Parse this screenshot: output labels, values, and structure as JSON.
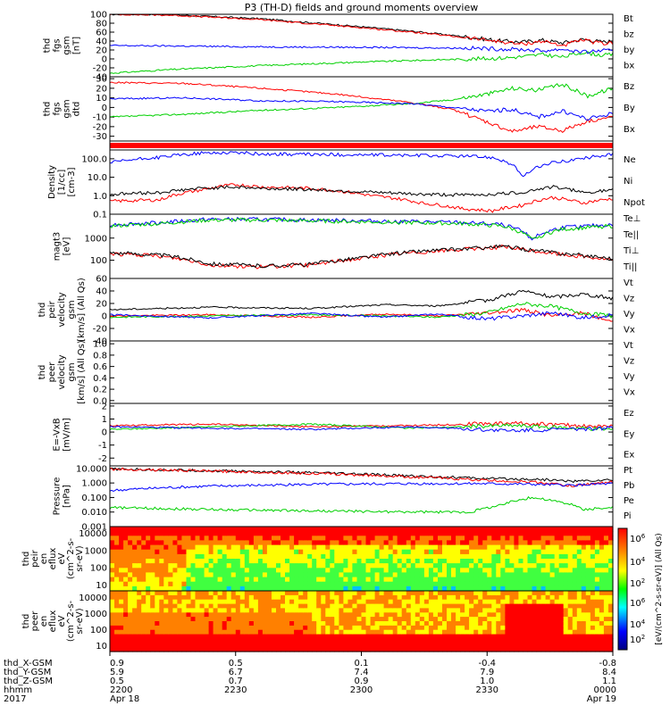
{
  "title": "P3 (TH-D) fields and ground moments overview",
  "colors": {
    "black": "#000000",
    "red": "#ff0000",
    "green": "#00d000",
    "blue": "#0000ff"
  },
  "chart_data": [
    {
      "type": "line",
      "panel": "fgs_gsm",
      "ylabel": [
        "thd",
        "fgs",
        "gsm",
        "[nT]"
      ],
      "ylim": [
        -40,
        100
      ],
      "yticks": [
        100,
        80,
        60,
        40,
        20,
        0,
        -20,
        -40
      ],
      "series": [
        {
          "name": "Bt",
          "color": "black",
          "x": [
            0,
            0.12,
            0.3,
            0.5,
            0.62,
            0.72,
            0.78,
            0.82,
            0.86,
            0.9,
            0.94,
            0.98,
            1
          ],
          "values": [
            100,
            99,
            90,
            72,
            60,
            48,
            40,
            38,
            42,
            36,
            44,
            38,
            40
          ]
        },
        {
          "name": "bz",
          "color": "red",
          "x": [
            0,
            0.12,
            0.3,
            0.5,
            0.62,
            0.72,
            0.78,
            0.82,
            0.86,
            0.9,
            0.94,
            0.98,
            1
          ],
          "values": [
            100,
            98,
            88,
            70,
            58,
            46,
            38,
            33,
            40,
            30,
            42,
            34,
            36
          ]
        },
        {
          "name": "by",
          "color": "green",
          "x": [
            0,
            0.12,
            0.3,
            0.5,
            0.62,
            0.72,
            0.78,
            0.82,
            0.86,
            0.9,
            0.94,
            0.98,
            1
          ],
          "values": [
            -32,
            -24,
            -15,
            -7,
            -3,
            0,
            2,
            5,
            10,
            4,
            15,
            8,
            10
          ]
        },
        {
          "name": "bx",
          "color": "blue",
          "x": [
            0,
            0.12,
            0.3,
            0.5,
            0.62,
            0.72,
            0.78,
            0.82,
            0.86,
            0.9,
            0.94,
            0.98,
            1
          ],
          "values": [
            30,
            29,
            27,
            26,
            25,
            24,
            22,
            21,
            18,
            22,
            15,
            19,
            17
          ]
        }
      ]
    },
    {
      "type": "line",
      "panel": "fgs_gsm_detrend",
      "ylabel": [
        "thd",
        "fgs",
        "gsm",
        "dtd"
      ],
      "ylim": [
        -35,
        32
      ],
      "yticks": [
        30,
        20,
        10,
        0,
        -10,
        -20,
        -30
      ],
      "series": [
        {
          "name": "Bz",
          "color": "red",
          "x": [
            0,
            0.15,
            0.3,
            0.45,
            0.6,
            0.68,
            0.75,
            0.8,
            0.85,
            0.9,
            0.95,
            1
          ],
          "values": [
            26,
            25,
            20,
            14,
            5,
            -2,
            -15,
            -25,
            -20,
            -24,
            -14,
            -10
          ]
        },
        {
          "name": "By",
          "color": "green",
          "x": [
            0,
            0.15,
            0.3,
            0.45,
            0.6,
            0.68,
            0.75,
            0.8,
            0.85,
            0.9,
            0.95,
            1
          ],
          "values": [
            -10,
            -7,
            -3,
            0,
            4,
            8,
            14,
            20,
            18,
            24,
            12,
            20
          ]
        },
        {
          "name": "Bx",
          "color": "blue",
          "x": [
            0,
            0.15,
            0.3,
            0.45,
            0.6,
            0.68,
            0.75,
            0.8,
            0.85,
            0.9,
            0.95,
            1
          ],
          "values": [
            9,
            10,
            7,
            6,
            4,
            0,
            -4,
            -2,
            -10,
            -4,
            -12,
            -6
          ]
        }
      ]
    },
    {
      "type": "line",
      "panel": "density",
      "log": true,
      "ylabel": [
        "Density",
        "[1/cc]",
        "[cm-3]"
      ],
      "ylim": [
        0.1,
        300
      ],
      "yticks": [
        "100.0",
        "10.0",
        "1.0",
        "0.1"
      ],
      "series": [
        {
          "name": "Ne",
          "color": "red",
          "x": [
            0,
            0.1,
            0.18,
            0.25,
            0.3,
            0.4,
            0.52,
            0.62,
            0.7,
            0.76,
            0.82,
            0.88,
            0.94,
            1
          ],
          "values": [
            0.5,
            0.6,
            2,
            4,
            3,
            2.5,
            1,
            0.4,
            0.2,
            0.15,
            0.3,
            0.8,
            0.4,
            0.7
          ]
        },
        {
          "name": "Ni",
          "color": "black",
          "x": [
            0,
            0.1,
            0.18,
            0.25,
            0.3,
            0.4,
            0.52,
            0.62,
            0.7,
            0.76,
            0.82,
            0.88,
            0.94,
            1
          ],
          "values": [
            1.2,
            1.5,
            2.5,
            3,
            2.5,
            2.2,
            1.5,
            1.2,
            1.1,
            1.2,
            1.5,
            3,
            1.5,
            2
          ]
        },
        {
          "name": "Npot",
          "color": "blue",
          "x": [
            0,
            0.1,
            0.18,
            0.25,
            0.3,
            0.4,
            0.52,
            0.62,
            0.7,
            0.76,
            0.82,
            0.88,
            0.94,
            1
          ],
          "values": [
            60,
            120,
            200,
            220,
            180,
            170,
            160,
            150,
            140,
            120,
            8,
            60,
            100,
            180
          ]
        }
      ]
    },
    {
      "type": "line",
      "panel": "temperature",
      "log": true,
      "ylabel": [
        "magt3",
        "[eV]"
      ],
      "ylim": [
        15,
        12000
      ],
      "yticks": [
        "1000",
        "100"
      ],
      "series": [
        {
          "name": "Te⊥",
          "color": "red",
          "x": [
            0,
            0.1,
            0.2,
            0.3,
            0.4,
            0.5,
            0.6,
            0.7,
            0.78,
            0.84,
            0.9,
            1
          ],
          "values": [
            200,
            150,
            60,
            50,
            60,
            120,
            220,
            300,
            400,
            260,
            180,
            100
          ]
        },
        {
          "name": "Te||",
          "color": "black",
          "x": [
            0,
            0.1,
            0.2,
            0.3,
            0.4,
            0.5,
            0.6,
            0.7,
            0.78,
            0.84,
            0.9,
            1
          ],
          "values": [
            220,
            170,
            70,
            55,
            65,
            130,
            240,
            320,
            420,
            280,
            200,
            120
          ]
        },
        {
          "name": "Ti⊥",
          "color": "blue",
          "x": [
            0,
            0.1,
            0.2,
            0.3,
            0.4,
            0.5,
            0.6,
            0.7,
            0.78,
            0.84,
            0.9,
            1
          ],
          "values": [
            4000,
            5000,
            7000,
            7000,
            6500,
            6000,
            5500,
            5000,
            4000,
            900,
            3000,
            4000
          ]
        },
        {
          "name": "Ti||",
          "color": "green",
          "x": [
            0,
            0.1,
            0.2,
            0.3,
            0.4,
            0.5,
            0.6,
            0.7,
            0.78,
            0.84,
            0.9,
            1
          ],
          "values": [
            3500,
            4500,
            6500,
            6500,
            6000,
            5500,
            5000,
            4500,
            3500,
            800,
            2500,
            3500
          ]
        }
      ]
    },
    {
      "type": "line",
      "panel": "peir_velocity",
      "ylabel": [
        "thd",
        "peir",
        "velocity",
        "gsm",
        "[km/s] (All Qs)"
      ],
      "ylim": [
        -40,
        60
      ],
      "yticks": [
        60,
        40,
        20,
        0,
        -20,
        -40
      ],
      "series": [
        {
          "name": "Vt",
          "color": "black",
          "x": [
            0,
            0.2,
            0.4,
            0.55,
            0.65,
            0.75,
            0.82,
            0.88,
            0.94,
            1
          ],
          "values": [
            10,
            14,
            12,
            18,
            16,
            25,
            40,
            30,
            35,
            28
          ]
        },
        {
          "name": "Vz",
          "color": "red",
          "x": [
            0,
            0.2,
            0.4,
            0.55,
            0.65,
            0.75,
            0.82,
            0.88,
            0.94,
            1
          ],
          "values": [
            0,
            2,
            -2,
            3,
            0,
            5,
            10,
            0,
            5,
            -10
          ]
        },
        {
          "name": "Vy",
          "color": "green",
          "x": [
            0,
            0.2,
            0.4,
            0.55,
            0.65,
            0.75,
            0.82,
            0.88,
            0.94,
            1
          ],
          "values": [
            -2,
            0,
            2,
            0,
            -2,
            5,
            20,
            15,
            5,
            0
          ]
        },
        {
          "name": "Vx",
          "color": "blue",
          "x": [
            0,
            0.2,
            0.4,
            0.55,
            0.65,
            0.75,
            0.82,
            0.88,
            0.94,
            1
          ],
          "values": [
            2,
            -3,
            4,
            -2,
            3,
            -5,
            0,
            5,
            -3,
            2
          ]
        }
      ]
    },
    {
      "type": "line",
      "panel": "peer_velocity",
      "ylabel": [
        "thd",
        "peer",
        "velocity",
        "gsm",
        "[km/s] (All Qs)"
      ],
      "ylim": [
        -0.05,
        1.05
      ],
      "yticks": [
        "1.0",
        "0.8",
        "0.6",
        "0.4",
        "0.2",
        "0.0"
      ],
      "series": [
        {
          "name": "Vt",
          "color": "black",
          "x": [],
          "values": []
        },
        {
          "name": "Vz",
          "color": "red",
          "x": [],
          "values": []
        },
        {
          "name": "Vy",
          "color": "green",
          "x": [],
          "values": []
        },
        {
          "name": "Vx",
          "color": "blue",
          "x": [],
          "values": []
        }
      ]
    },
    {
      "type": "line",
      "panel": "efield",
      "ylabel": [
        "E=-VxB",
        "[mV/m]"
      ],
      "ylim": [
        -2.6,
        2.2
      ],
      "yticks": [
        2,
        1,
        0,
        -1,
        -2
      ],
      "series": [
        {
          "name": "Ez",
          "color": "red",
          "x": [
            0,
            0.2,
            0.4,
            0.6,
            0.8,
            1
          ],
          "values": [
            0.5,
            0.6,
            0.4,
            0.5,
            0.7,
            0.4
          ]
        },
        {
          "name": "Ey",
          "color": "green",
          "x": [
            0,
            0.2,
            0.4,
            0.6,
            0.8,
            1
          ],
          "values": [
            0.2,
            0.4,
            0.6,
            0.3,
            0.5,
            0.2
          ]
        },
        {
          "name": "Ex",
          "color": "blue",
          "x": [
            0,
            0.2,
            0.4,
            0.6,
            0.8,
            1
          ],
          "values": [
            0.4,
            0.3,
            0.2,
            0.4,
            0.1,
            0.3
          ]
        }
      ]
    },
    {
      "type": "line",
      "panel": "pressure",
      "log": true,
      "ylabel": [
        "Pressure",
        "[nPa]"
      ],
      "ylim": [
        0.001,
        15
      ],
      "yticks": [
        "10.000",
        "1.000",
        "0.100",
        "0.010",
        "0.001"
      ],
      "series": [
        {
          "name": "Pt",
          "color": "black",
          "x": [
            0,
            0.2,
            0.4,
            0.6,
            0.75,
            0.85,
            0.92,
            1
          ],
          "values": [
            9,
            7,
            5,
            3,
            2,
            1.8,
            1.3,
            1.6
          ]
        },
        {
          "name": "Pb",
          "color": "red",
          "x": [
            0,
            0.2,
            0.4,
            0.6,
            0.75,
            0.85,
            0.92,
            1
          ],
          "values": [
            9,
            6.5,
            4.5,
            2.6,
            1.5,
            1.1,
            0.6,
            1.2
          ]
        },
        {
          "name": "Pe",
          "color": "green",
          "x": [
            0,
            0.2,
            0.4,
            0.6,
            0.72,
            0.78,
            0.84,
            0.88,
            0.94,
            1
          ],
          "values": [
            0.02,
            0.015,
            0.012,
            0.01,
            0.01,
            0.03,
            0.1,
            0.06,
            0.015,
            0.02
          ]
        },
        {
          "name": "Pi",
          "color": "blue",
          "x": [
            0,
            0.2,
            0.4,
            0.6,
            0.75,
            0.85,
            0.92,
            1
          ],
          "values": [
            0.3,
            0.6,
            0.8,
            0.9,
            0.9,
            0.8,
            0.7,
            0.9
          ]
        }
      ]
    },
    {
      "type": "heatmap",
      "panel": "peir_spectrogram",
      "ylabel": [
        "thd",
        "peir",
        "en",
        "eflux",
        "eV",
        "(cm^2-s-",
        "sr-eV)"
      ],
      "yticks": [
        "10000",
        "1000",
        "100",
        "10"
      ],
      "colorbar_ticks": [
        "10^6",
        "10^4",
        "10^2"
      ],
      "colorbar_label": "[eV/(cm^2-s-sr-eV)] (All Qs)"
    },
    {
      "type": "heatmap",
      "panel": "peer_spectrogram",
      "ylabel": [
        "thd",
        "peer",
        "en",
        "eflux",
        "eV",
        "(cm^2-s-",
        "sr-eV)"
      ],
      "yticks": [
        "10000",
        "1000",
        "100",
        "10"
      ],
      "colorbar_ticks": [
        "10^6",
        "10^4",
        "10^2"
      ]
    }
  ],
  "legend_labels": {
    "p1": [
      "Bt",
      "bz",
      "by",
      "bx"
    ],
    "p2": [
      "Bz",
      "By",
      "Bx"
    ],
    "p4": [
      "Ne",
      "Ni",
      "Npot"
    ],
    "p5": [
      "Te⊥",
      "Te||",
      "Ti⊥",
      "Ti||"
    ],
    "p6": [
      "Vt",
      "Vz",
      "Vy",
      "Vx"
    ],
    "p7": [
      "Vt",
      "Vz",
      "Vy",
      "Vx"
    ],
    "p8": [
      "Ez",
      "Ey",
      "Ex"
    ],
    "p9": [
      "Pt",
      "Pb",
      "Pe",
      "Pi"
    ]
  },
  "x_axis": {
    "row_labels": [
      "thd_X-GSM",
      "thd_Y-GSM",
      "thd_Z-GSM",
      "hhmm",
      "2017"
    ],
    "columns": [
      {
        "x": 0.0,
        "vals": [
          "0.9",
          "5.9",
          "0.5",
          "2200",
          "Apr 18"
        ]
      },
      {
        "x": 0.25,
        "vals": [
          "0.5",
          "6.7",
          "0.7",
          "2230",
          ""
        ]
      },
      {
        "x": 0.5,
        "vals": [
          "0.1",
          "7.4",
          "0.9",
          "2300",
          ""
        ]
      },
      {
        "x": 0.75,
        "vals": [
          "-0.4",
          "7.9",
          "1.0",
          "2330",
          ""
        ]
      },
      {
        "x": 1.0,
        "vals": [
          "-0.8",
          "8.4",
          "1.1",
          "0000",
          "Apr 19"
        ]
      }
    ]
  }
}
